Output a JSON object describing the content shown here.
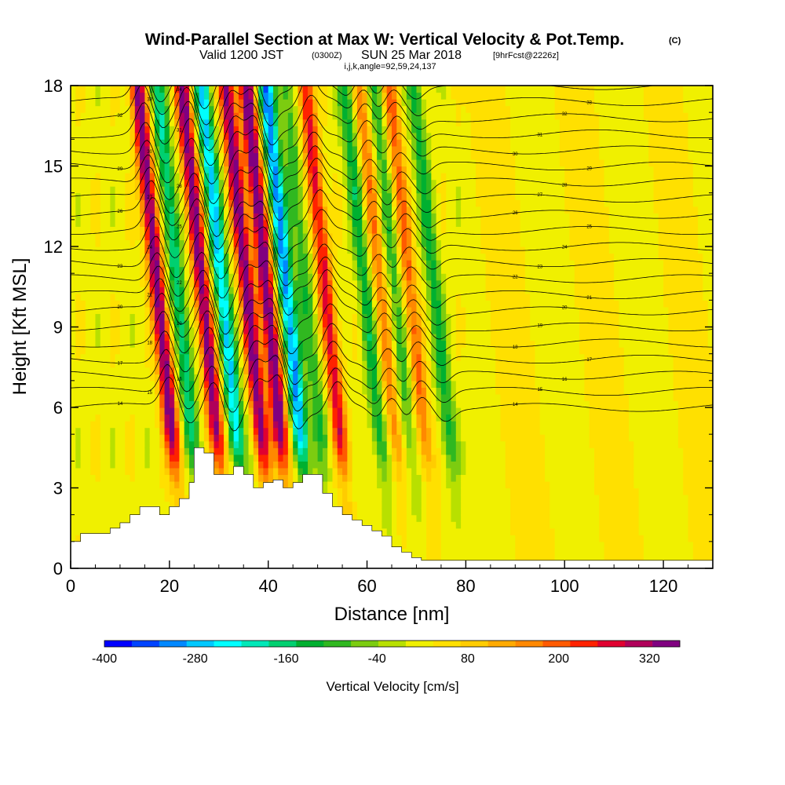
{
  "title": {
    "main": "Wind-Parallel Section at Max W: Vertical Velocity & Pot.Temp.",
    "main_mark": "(C)",
    "sub_valid": "Valid 1200 JST",
    "sub_utc": "(0300Z)",
    "sub_date": "SUN 25 Mar 2018",
    "sub_fcst": "[9hrFcst@2226z]",
    "indices": "i,j,k,angle=92,59,24,137"
  },
  "chart_data": {
    "type": "heatmap",
    "xlabel": "Distance [nm]",
    "ylabel": "Height [Kft MSL]",
    "xlim": [
      0,
      130
    ],
    "ylim": [
      0,
      18
    ],
    "x_ticks": [
      0,
      20,
      40,
      60,
      80,
      100,
      120
    ],
    "y_ticks": [
      0,
      3,
      6,
      9,
      12,
      15,
      18
    ],
    "colorbar": {
      "title": "Vertical Velocity [cm/s]",
      "tick_labels": [
        "-400",
        "-280",
        "-160",
        "-40",
        "80",
        "200",
        "320"
      ],
      "tick_values": [
        -400,
        -280,
        -160,
        -40,
        80,
        200,
        320
      ],
      "range": [
        -400,
        360
      ],
      "step": 40,
      "colors": [
        "#0000ff",
        "#0044ff",
        "#0088ff",
        "#00c8ff",
        "#00ffff",
        "#00e8b8",
        "#00d070",
        "#00b030",
        "#30b820",
        "#7ccc10",
        "#b8e000",
        "#f0f000",
        "#ffe000",
        "#ffcc00",
        "#ffaa00",
        "#ff8800",
        "#ff5a00",
        "#ff2200",
        "#e00030",
        "#b0005a",
        "#800080"
      ]
    },
    "updraft_columns": [
      {
        "x": 20,
        "w": 340
      },
      {
        "x": 29,
        "w": 330
      },
      {
        "x": 38,
        "w": 330
      },
      {
        "x": 42,
        "w": 360
      },
      {
        "x": 54,
        "w": 250
      },
      {
        "x": 65,
        "w": 150
      },
      {
        "x": 71,
        "w": 170
      }
    ],
    "downdraft_columns": [
      {
        "x": 24,
        "w": -200
      },
      {
        "x": 33,
        "w": -280
      },
      {
        "x": 46,
        "w": -330
      },
      {
        "x": 50,
        "w": -120
      },
      {
        "x": 62,
        "w": -150
      },
      {
        "x": 68,
        "w": -120
      },
      {
        "x": 76,
        "w": -140
      }
    ],
    "terrain": {
      "x": [
        0,
        2,
        4,
        6,
        8,
        10,
        12,
        14,
        16,
        18,
        20,
        22,
        24,
        25,
        27,
        29,
        31,
        33,
        35,
        37,
        39,
        41,
        43,
        45,
        47,
        49,
        51,
        53,
        55,
        57,
        59,
        61,
        63,
        65,
        67,
        69,
        71,
        130
      ],
      "z_kft": [
        1.0,
        1.3,
        1.3,
        1.3,
        1.5,
        1.7,
        2.0,
        2.3,
        2.3,
        2.0,
        2.3,
        2.6,
        3.2,
        4.5,
        4.3,
        3.5,
        3.5,
        3.8,
        3.5,
        3.0,
        3.2,
        3.3,
        3.0,
        3.2,
        3.5,
        3.5,
        2.8,
        2.3,
        2.0,
        1.8,
        1.6,
        1.4,
        1.2,
        0.8,
        0.6,
        0.4,
        0.3,
        0.3
      ]
    },
    "theta_contour_labels": [
      "14",
      "15",
      "16",
      "17",
      "18",
      "19",
      "20",
      "21",
      "22",
      "23",
      "24",
      "25",
      "26",
      "27",
      "28",
      "29",
      "30",
      "31",
      "32",
      "33",
      "34"
    ],
    "theta_contour_levels": [
      14,
      15,
      16,
      17,
      18,
      19,
      20,
      21,
      22,
      23,
      24,
      25,
      26,
      27,
      28,
      29,
      30,
      31,
      32,
      33,
      34
    ]
  }
}
